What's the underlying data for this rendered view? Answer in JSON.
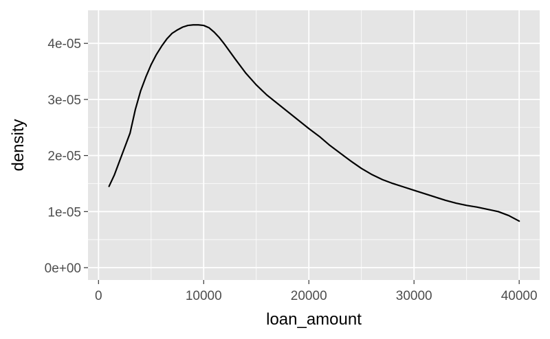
{
  "chart_data": {
    "type": "line",
    "xlabel": "loan_amount",
    "ylabel": "density",
    "xlim": [
      -1000,
      41950
    ],
    "ylim": [
      -2.2e-06,
      4.59e-05
    ],
    "x_ticks": [
      0,
      10000,
      20000,
      30000,
      40000
    ],
    "x_tick_labels": [
      "0",
      "10000",
      "20000",
      "30000",
      "40000"
    ],
    "y_ticks": [
      0,
      1e-05,
      2e-05,
      3e-05,
      4e-05
    ],
    "y_tick_labels": [
      "0e+00",
      "1e-05",
      "2e-05",
      "3e-05",
      "4e-05"
    ],
    "grid": true,
    "legend": "none",
    "colors": {
      "panel": "#e5e5e5",
      "grid": "#ffffff",
      "line": "#000000",
      "tick_text": "#4d4d4d"
    },
    "series": [
      {
        "x": [
          1000,
          1500,
          2000,
          2500,
          3000,
          3500,
          4000,
          4500,
          5000,
          5500,
          6000,
          6500,
          7000,
          7500,
          8000,
          8500,
          9000,
          9500,
          10000,
          10500,
          11000,
          11500,
          12000,
          13000,
          14000,
          15000,
          16000,
          17000,
          18000,
          19000,
          20000,
          21000,
          22000,
          23000,
          24000,
          25000,
          26000,
          27000,
          28000,
          29000,
          30000,
          31000,
          32000,
          33000,
          34000,
          35000,
          36000,
          37000,
          38000,
          39000,
          40000
        ],
        "y": [
          1.45e-05,
          1.65e-05,
          1.9e-05,
          2.15e-05,
          2.4e-05,
          2.82e-05,
          3.15e-05,
          3.4e-05,
          3.62e-05,
          3.8e-05,
          3.95e-05,
          4.08e-05,
          4.18e-05,
          4.24e-05,
          4.29e-05,
          4.32e-05,
          4.33e-05,
          4.33e-05,
          4.32e-05,
          4.28e-05,
          4.2e-05,
          4.1e-05,
          3.98e-05,
          3.72e-05,
          3.47e-05,
          3.26e-05,
          3.08e-05,
          2.93e-05,
          2.78e-05,
          2.63e-05,
          2.48e-05,
          2.34e-05,
          2.18e-05,
          2.04e-05,
          1.9e-05,
          1.77e-05,
          1.66e-05,
          1.57e-05,
          1.5e-05,
          1.44e-05,
          1.38e-05,
          1.32e-05,
          1.26e-05,
          1.2e-05,
          1.15e-05,
          1.11e-05,
          1.08e-05,
          1.04e-05,
          1e-05,
          9.3e-06,
          8.3e-06
        ]
      }
    ]
  }
}
